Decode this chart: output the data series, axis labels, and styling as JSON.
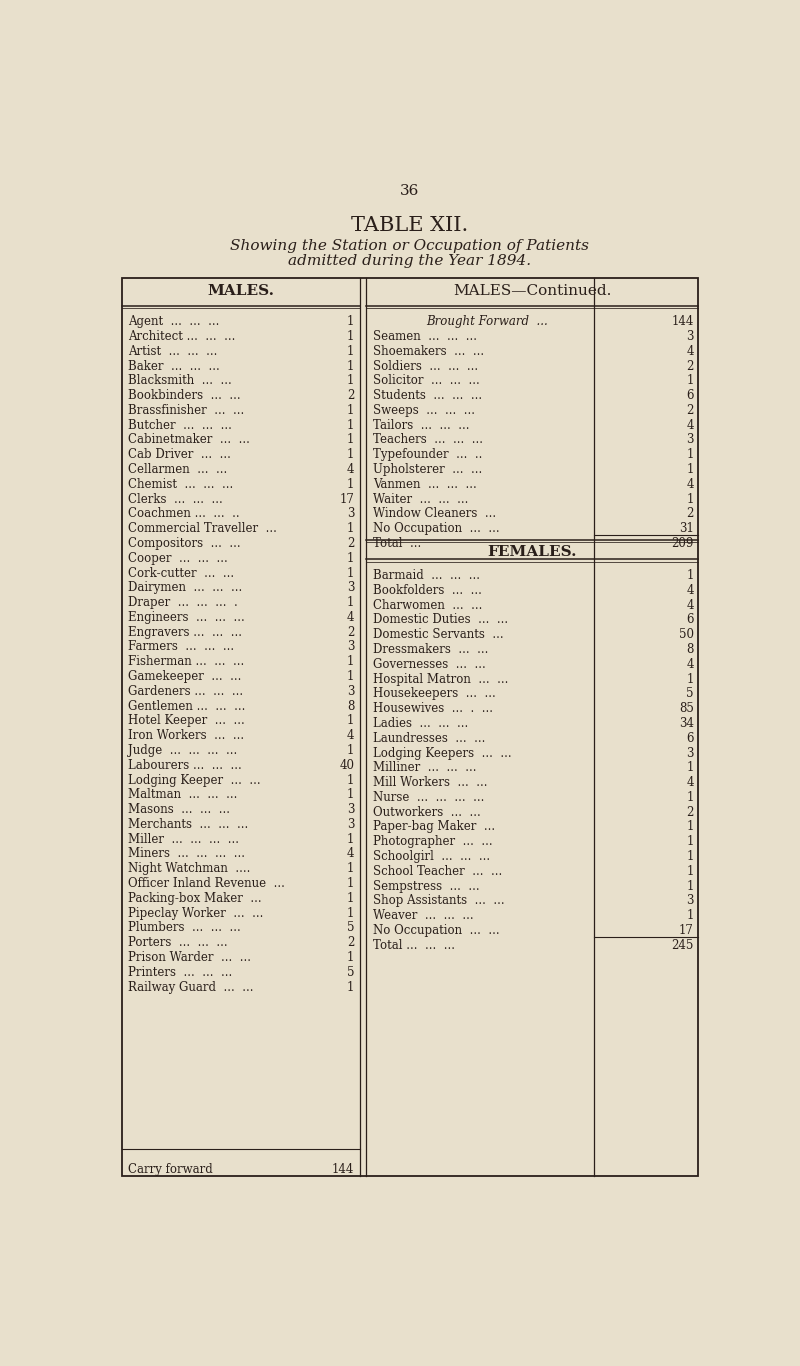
{
  "page_number": "36",
  "table_title": "TABLE XII.",
  "subtitle_line1": "Showing the Station or Occupation of Patients",
  "subtitle_line2": "admitted during the Year 1894.",
  "bg_color": "#e8e0cc",
  "text_color": "#2a1f1a",
  "col1_header": "MALES.",
  "col2_header": "MALES—Continued.",
  "col3_header": "FEMALES.",
  "males_left": [
    [
      "Agent  ...  ...  ...",
      "1"
    ],
    [
      "Architect ...  ...  ...",
      "1"
    ],
    [
      "Artist  ...  ...  ...",
      "1"
    ],
    [
      "Baker  ...  ...  ...",
      "1"
    ],
    [
      "Blacksmith  ...  ...",
      "1"
    ],
    [
      "Bookbinders  ...  ...",
      "2"
    ],
    [
      "Brassfinisher  ...  ...",
      "1"
    ],
    [
      "Butcher  ...  ...  ...",
      "1"
    ],
    [
      "Cabinetmaker  ...  ...",
      "1"
    ],
    [
      "Cab Driver  ...  ...",
      "1"
    ],
    [
      "Cellarmen  ...  ...",
      "4"
    ],
    [
      "Chemist  ...  ...  ...",
      "1"
    ],
    [
      "Clerks  ...  ...  ...",
      "17"
    ],
    [
      "Coachmen ...  ...  ..",
      "3"
    ],
    [
      "Commercial Traveller  ...",
      "1"
    ],
    [
      "Compositors  ...  ...",
      "2"
    ],
    [
      "Cooper  ...  ...  ...",
      "1"
    ],
    [
      "Cork-cutter  ...  ...",
      "1"
    ],
    [
      "Dairymen  ...  ...  ...",
      "3"
    ],
    [
      "Draper  ...  ...  ...  .",
      "1"
    ],
    [
      "Engineers  ...  ...  ...",
      "4"
    ],
    [
      "Engravers ...  ...  ...",
      "2"
    ],
    [
      "Farmers  ...  ...  ...",
      "3"
    ],
    [
      "Fisherman ...  ...  ...",
      "1"
    ],
    [
      "Gamekeeper  ...  ...",
      "1"
    ],
    [
      "Gardeners ...  ...  ...",
      "3"
    ],
    [
      "Gentlemen ...  ...  ...",
      "8"
    ],
    [
      "Hotel Keeper  ...  ...",
      "1"
    ],
    [
      "Iron Workers  ...  ...",
      "4"
    ],
    [
      "Judge  ...  ...  ...  ...",
      "1"
    ],
    [
      "Labourers ...  ...  ...",
      "40"
    ],
    [
      "Lodging Keeper  ...  ...",
      "1"
    ],
    [
      "Maltman  ...  ...  ...",
      "1"
    ],
    [
      "Masons  ...  ...  ...",
      "3"
    ],
    [
      "Merchants  ...  ...  ...",
      "3"
    ],
    [
      "Miller  ...  ...  ...  ...",
      "1"
    ],
    [
      "Miners  ...  ...  ...  ...",
      "4"
    ],
    [
      "Night Watchman  ....",
      "1"
    ],
    [
      "Officer Inland Revenue  ...",
      "1"
    ],
    [
      "Packing-box Maker  ...",
      "1"
    ],
    [
      "Pipeclay Worker  ...  ...",
      "1"
    ],
    [
      "Plumbers  ...  ...  ...",
      "5"
    ],
    [
      "Porters  ...  ...  ...",
      "2"
    ],
    [
      "Prison Warder  ...  ...",
      "1"
    ],
    [
      "Printers  ...  ...  ...",
      "5"
    ],
    [
      "Railway Guard  ...  ...",
      "1"
    ]
  ],
  "males_right": [
    [
      "Brought Forward  ...",
      "144"
    ],
    [
      "Seamen  ...  ...  ...",
      "3"
    ],
    [
      "Shoemakers  ...  ...",
      "4"
    ],
    [
      "Soldiers  ...  ...  ...",
      "2"
    ],
    [
      "Solicitor  ...  ...  ...",
      "1"
    ],
    [
      "Students  ...  ...  ...",
      "6"
    ],
    [
      "Sweeps  ...  ...  ...",
      "2"
    ],
    [
      "Tailors  ...  ...  ...",
      "4"
    ],
    [
      "Teachers  ...  ...  ...",
      "3"
    ],
    [
      "Typefounder  ...  ..",
      "1"
    ],
    [
      "Upholsterer  ...  ...",
      "1"
    ],
    [
      "Vanmen  ...  ...  ...",
      "4"
    ],
    [
      "Waiter  ...  ...  ...",
      "1"
    ],
    [
      "Window Cleaners  ...",
      "2"
    ],
    [
      "No Occupation  ...  ...",
      "31"
    ],
    [
      "Total  ...",
      "209"
    ]
  ],
  "females": [
    [
      "Barmaid  ...  ...  ...",
      "1"
    ],
    [
      "Bookfolders  ...  ...",
      "4"
    ],
    [
      "Charwomen  ...  ...",
      "4"
    ],
    [
      "Domestic Duties  ...  ...",
      "6"
    ],
    [
      "Domestic Servants  ...",
      "50"
    ],
    [
      "Dressmakers  ...  ...",
      "8"
    ],
    [
      "Governesses  ...  ...",
      "4"
    ],
    [
      "Hospital Matron  ...  ...",
      "1"
    ],
    [
      "Housekeepers  ...  ...",
      "5"
    ],
    [
      "Housewives  ...  .  ...",
      "85"
    ],
    [
      "Ladies  ...  ...  ...",
      "34"
    ],
    [
      "Laundresses  ...  ...",
      "6"
    ],
    [
      "Lodging Keepers  ...  ...",
      "3"
    ],
    [
      "Milliner  ...  ...  ...",
      "1"
    ],
    [
      "Mill Workers  ...  ...",
      "4"
    ],
    [
      "Nurse  ...  ...  ...  ...",
      "1"
    ],
    [
      "Outworkers  ...  ...",
      "2"
    ],
    [
      "Paper-bag Maker  ...",
      "1"
    ],
    [
      "Photographer  ...  ...",
      "1"
    ],
    [
      "Schoolgirl  ...  ...  ...",
      "1"
    ],
    [
      "School Teacher  ...  ...",
      "1"
    ],
    [
      "Sempstress  ...  ...",
      "1"
    ],
    [
      "Shop Assistants  ...  ...",
      "3"
    ],
    [
      "Weaver  ...  ...  ...",
      "1"
    ],
    [
      "No Occupation  ...  ...",
      "17"
    ],
    [
      "Total ...  ...  ...",
      "245"
    ]
  ],
  "carry_forward_label": "Carry forward",
  "carry_forward_val": "144"
}
